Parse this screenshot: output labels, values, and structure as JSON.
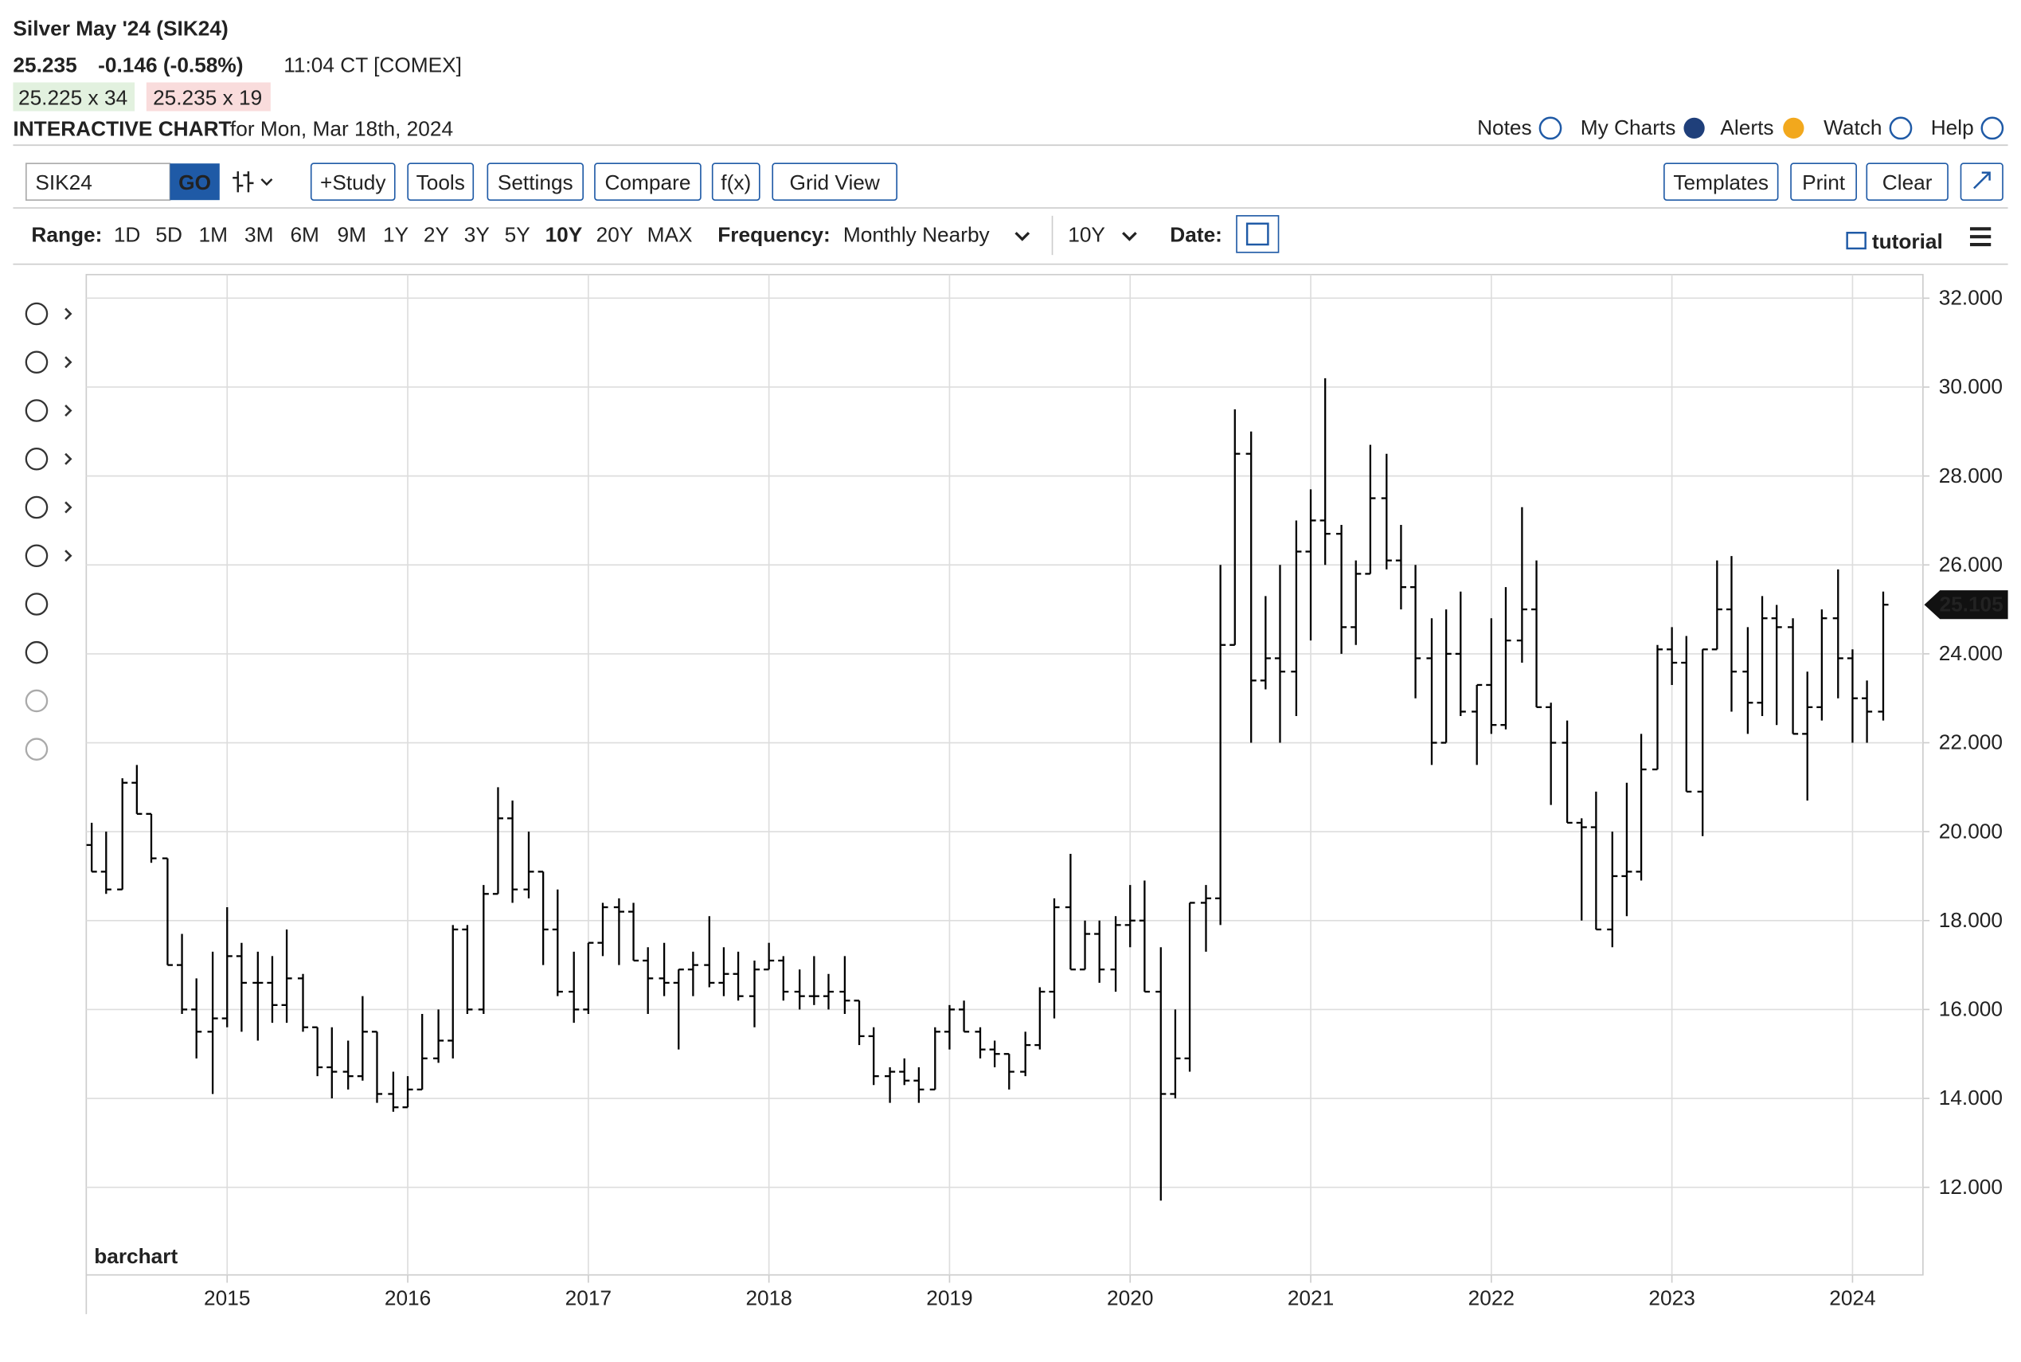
{
  "header": {
    "title": "Silver May '24 (SIK24)",
    "last": "25.235",
    "change": "-0.146 (-0.58%)",
    "time": "11:04 CT [COMEX]",
    "bid": "25.225 x 34",
    "ask": "25.235 x 19",
    "chart_label": "INTERACTIVE CHART",
    "date": "for Mon, Mar 18th, 2024"
  },
  "links": [
    "Notes",
    "My Charts",
    "Alerts",
    "Watch",
    "Help"
  ],
  "toolbar": {
    "symbol": "SIK24",
    "go": "GO",
    "buttons": [
      "+Study",
      "Tools",
      "Settings",
      "Compare",
      "f(x)",
      "Grid View"
    ],
    "right_buttons": [
      "Templates",
      "Print",
      "Clear"
    ]
  },
  "range": {
    "label": "Range:",
    "options": [
      "1D",
      "5D",
      "1M",
      "3M",
      "6M",
      "9M",
      "1Y",
      "2Y",
      "3Y",
      "5Y",
      "10Y",
      "20Y",
      "MAX"
    ],
    "selected": "10Y"
  },
  "frequency": {
    "label": "Frequency:",
    "value": "Monthly Nearby",
    "period": "10Y"
  },
  "date_label": "Date:",
  "tutorial": "tutorial",
  "watermark": "barchart",
  "chart_data": {
    "type": "ohlc",
    "color": "#000000",
    "grid": true,
    "x": [
      2014.25,
      2014.33,
      2014.42,
      2014.5,
      2014.58,
      2014.67,
      2014.75,
      2014.83,
      2014.92,
      2015.0,
      2015.08,
      2015.17,
      2015.25,
      2015.33,
      2015.42,
      2015.5,
      2015.58,
      2015.67,
      2015.75,
      2015.83,
      2015.92,
      2016.0,
      2016.08,
      2016.17,
      2016.25,
      2016.33,
      2016.42,
      2016.5,
      2016.58,
      2016.67,
      2016.75,
      2016.83,
      2016.92,
      2017.0,
      2017.08,
      2017.17,
      2017.25,
      2017.33,
      2017.42,
      2017.5,
      2017.58,
      2017.67,
      2017.75,
      2017.83,
      2017.92,
      2018.0,
      2018.08,
      2018.17,
      2018.25,
      2018.33,
      2018.42,
      2018.5,
      2018.58,
      2018.67,
      2018.75,
      2018.83,
      2018.92,
      2019.0,
      2019.08,
      2019.17,
      2019.25,
      2019.33,
      2019.42,
      2019.5,
      2019.58,
      2019.67,
      2019.75,
      2019.83,
      2019.92,
      2020.0,
      2020.08,
      2020.17,
      2020.25,
      2020.33,
      2020.42,
      2020.5,
      2020.58,
      2020.67,
      2020.75,
      2020.83,
      2020.92,
      2021.0,
      2021.08,
      2021.17,
      2021.25,
      2021.33,
      2021.42,
      2021.5,
      2021.58,
      2021.67,
      2021.75,
      2021.83,
      2021.92,
      2022.0,
      2022.08,
      2022.17,
      2022.25,
      2022.33,
      2022.42,
      2022.5,
      2022.58,
      2022.67,
      2022.75,
      2022.83,
      2022.92,
      2023.0,
      2023.08,
      2023.17,
      2023.25,
      2023.33,
      2023.42,
      2023.5,
      2023.58,
      2023.67,
      2023.75,
      2023.83,
      2023.92,
      2024.0,
      2024.08,
      2024.17
    ],
    "open": [
      19.7,
      19.1,
      18.7,
      21.1,
      20.4,
      19.4,
      17.0,
      16.0,
      15.5,
      15.8,
      17.2,
      16.6,
      16.6,
      16.1,
      16.7,
      15.6,
      14.7,
      14.6,
      14.5,
      15.5,
      14.1,
      13.8,
      14.2,
      14.9,
      15.3,
      17.8,
      16.0,
      18.6,
      20.3,
      18.7,
      19.1,
      17.8,
      16.4,
      16.0,
      17.5,
      18.3,
      18.2,
      17.1,
      16.7,
      16.6,
      16.9,
      17.0,
      16.6,
      16.8,
      16.3,
      16.9,
      17.1,
      16.4,
      16.3,
      16.3,
      16.4,
      16.2,
      15.4,
      14.5,
      14.6,
      14.4,
      14.2,
      15.5,
      16.0,
      15.5,
      15.1,
      15.0,
      14.6,
      15.2,
      16.4,
      18.3,
      16.9,
      17.7,
      16.9,
      17.9,
      18.0,
      16.4,
      14.1,
      14.9,
      18.4,
      18.5,
      24.2,
      28.5,
      23.4,
      23.9,
      23.6,
      26.3,
      27.0,
      26.7,
      24.6,
      25.8,
      27.5,
      26.1,
      25.5,
      23.9,
      22.0,
      24.0,
      22.7,
      23.3,
      22.4,
      24.3,
      25.0,
      22.8,
      22.0,
      20.2,
      20.1,
      17.8,
      19.0,
      19.1,
      21.4,
      24.1,
      23.8,
      20.9,
      24.1,
      25.0,
      23.6,
      22.9,
      24.8,
      24.6,
      22.2,
      22.8,
      24.8,
      23.9,
      23.0,
      22.7
    ],
    "high": [
      20.2,
      20.0,
      21.2,
      21.5,
      20.4,
      19.4,
      17.7,
      16.7,
      17.3,
      18.3,
      17.5,
      17.3,
      17.2,
      17.8,
      16.8,
      15.6,
      15.6,
      15.3,
      16.3,
      15.5,
      14.6,
      14.5,
      15.9,
      16.0,
      17.9,
      17.9,
      18.8,
      21.0,
      20.7,
      20.0,
      19.1,
      18.7,
      17.3,
      17.5,
      18.4,
      18.5,
      18.4,
      17.4,
      17.5,
      16.9,
      17.3,
      18.1,
      17.4,
      17.3,
      17.1,
      17.5,
      17.2,
      16.9,
      17.2,
      16.8,
      17.2,
      16.2,
      15.6,
      14.7,
      14.9,
      14.7,
      15.6,
      16.1,
      16.2,
      15.6,
      15.3,
      15.0,
      15.5,
      16.5,
      18.5,
      19.5,
      18.0,
      18.0,
      18.1,
      18.8,
      18.9,
      17.4,
      16.0,
      18.4,
      18.8,
      26.0,
      29.5,
      29.0,
      25.3,
      26.0,
      27.0,
      27.7,
      30.2,
      26.9,
      26.1,
      28.7,
      28.5,
      26.9,
      26.0,
      24.8,
      25.0,
      25.4,
      23.3,
      24.8,
      25.5,
      27.3,
      26.1,
      22.9,
      22.5,
      20.3,
      20.9,
      20.0,
      21.1,
      22.2,
      24.2,
      24.6,
      24.4,
      24.1,
      26.1,
      26.2,
      24.6,
      25.3,
      25.1,
      24.8,
      23.6,
      25.0,
      25.9,
      24.1,
      23.4,
      25.4
    ],
    "low": [
      19.1,
      18.6,
      18.7,
      20.4,
      19.3,
      17.0,
      15.9,
      14.9,
      14.1,
      15.6,
      15.5,
      15.3,
      15.7,
      15.7,
      15.5,
      14.5,
      14.0,
      14.2,
      14.4,
      13.9,
      13.7,
      13.8,
      14.2,
      14.8,
      14.9,
      15.9,
      15.9,
      18.6,
      18.4,
      18.5,
      17.0,
      16.3,
      15.7,
      15.9,
      17.2,
      17.0,
      17.1,
      15.9,
      16.3,
      15.1,
      16.3,
      16.5,
      16.3,
      16.2,
      15.6,
      16.9,
      16.2,
      16.0,
      16.1,
      16.0,
      15.9,
      15.2,
      14.3,
      13.9,
      14.3,
      13.9,
      14.2,
      15.1,
      15.5,
      14.9,
      14.7,
      14.2,
      14.5,
      15.1,
      15.8,
      16.9,
      16.9,
      16.6,
      16.4,
      17.4,
      16.4,
      11.7,
      14.0,
      14.6,
      17.3,
      17.9,
      24.2,
      22.0,
      23.2,
      22.0,
      22.6,
      24.3,
      26.0,
      24.0,
      24.2,
      25.8,
      25.9,
      25.0,
      23.0,
      21.5,
      22.0,
      22.6,
      21.5,
      22.2,
      22.3,
      23.8,
      22.8,
      20.6,
      20.2,
      18.0,
      17.8,
      17.4,
      18.1,
      18.9,
      21.4,
      23.3,
      20.9,
      19.9,
      24.1,
      22.7,
      22.2,
      22.6,
      22.4,
      22.2,
      20.7,
      22.5,
      23.0,
      22.0,
      22.0,
      22.5
    ],
    "close": [
      19.1,
      18.7,
      21.1,
      20.4,
      19.4,
      17.0,
      16.0,
      15.5,
      15.8,
      17.2,
      16.6,
      16.6,
      16.1,
      16.7,
      15.6,
      14.7,
      14.6,
      14.5,
      15.5,
      14.1,
      13.8,
      14.2,
      14.9,
      15.3,
      17.8,
      16.0,
      18.6,
      20.3,
      18.7,
      19.1,
      17.8,
      16.4,
      16.0,
      17.5,
      18.3,
      18.2,
      17.1,
      16.7,
      16.6,
      16.9,
      17.0,
      16.6,
      16.8,
      16.3,
      16.9,
      17.1,
      16.4,
      16.3,
      16.3,
      16.4,
      16.2,
      15.4,
      14.5,
      14.6,
      14.4,
      14.2,
      15.5,
      16.0,
      15.5,
      15.1,
      15.0,
      14.6,
      15.2,
      16.4,
      18.3,
      16.9,
      17.7,
      16.9,
      17.9,
      18.0,
      16.4,
      14.1,
      14.9,
      18.4,
      18.5,
      24.2,
      28.5,
      23.4,
      23.9,
      23.6,
      26.3,
      27.0,
      26.7,
      24.6,
      25.8,
      27.5,
      26.1,
      25.5,
      23.9,
      22.0,
      24.0,
      22.7,
      23.3,
      22.4,
      24.3,
      25.0,
      22.8,
      22.0,
      20.2,
      20.1,
      17.8,
      19.0,
      19.1,
      21.4,
      24.1,
      23.8,
      20.9,
      24.1,
      25.0,
      23.6,
      22.9,
      24.8,
      24.6,
      22.2,
      22.8,
      24.8,
      23.9,
      23.0,
      22.7,
      25.105
    ],
    "last_label": "25.105",
    "xlim": [
      2014.22,
      2024.39
    ],
    "xticks": [
      2015,
      2016,
      2017,
      2018,
      2019,
      2020,
      2021,
      2022,
      2023,
      2024
    ],
    "ylim": [
      10.03,
      32.53
    ],
    "yticks": [
      {
        "value": 12,
        "label": "12.000"
      },
      {
        "value": 14,
        "label": "14.000"
      },
      {
        "value": 16,
        "label": "16.000"
      },
      {
        "value": 18,
        "label": "18.000"
      },
      {
        "value": 20,
        "label": "20.000"
      },
      {
        "value": 22,
        "label": "22.000"
      },
      {
        "value": 24,
        "label": "24.000"
      },
      {
        "value": 26,
        "label": "26.000"
      },
      {
        "value": 28,
        "label": "28.000"
      },
      {
        "value": 30,
        "label": "30.000"
      },
      {
        "value": 32,
        "label": "32.000"
      }
    ]
  }
}
